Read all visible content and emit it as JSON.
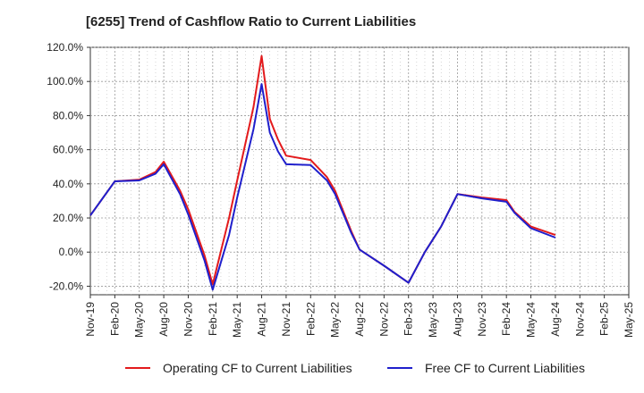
{
  "chart_data": {
    "type": "line",
    "title": "[6255]  Trend of Cashflow Ratio to Current Liabilities",
    "xlabel": "",
    "ylabel": "",
    "ylim": [
      -25,
      120
    ],
    "y_ticks": [
      -20,
      0,
      20,
      40,
      60,
      80,
      100,
      120
    ],
    "y_tick_labels": [
      "-20.0%",
      "0.0%",
      "20.0%",
      "40.0%",
      "60.0%",
      "80.0%",
      "100.0%",
      "120.0%"
    ],
    "x_tick_labels": [
      "Nov-19",
      "Feb-20",
      "May-20",
      "Aug-20",
      "Nov-20",
      "Feb-21",
      "May-21",
      "Aug-21",
      "Nov-21",
      "Feb-22",
      "May-22",
      "Aug-22",
      "Nov-22",
      "Feb-23",
      "May-23",
      "Aug-23",
      "Nov-23",
      "Feb-24",
      "May-24",
      "Aug-24",
      "Nov-24",
      "Feb-25",
      "May-25"
    ],
    "x_range": [
      "2019-11",
      "2025-05"
    ],
    "grid": true,
    "legend_position": "bottom",
    "series": [
      {
        "name": "Operating CF to Current Liabilities",
        "color": "#e31a1c",
        "points": [
          [
            "2019-11",
            21.5
          ],
          [
            "2020-02",
            41.5
          ],
          [
            "2020-05",
            42.5
          ],
          [
            "2020-07",
            47
          ],
          [
            "2020-08",
            53
          ],
          [
            "2020-10",
            36
          ],
          [
            "2020-11",
            25
          ],
          [
            "2021-01",
            -2
          ],
          [
            "2021-02",
            -19
          ],
          [
            "2021-04",
            20
          ],
          [
            "2021-05",
            42
          ],
          [
            "2021-07",
            85
          ],
          [
            "2021-08",
            115
          ],
          [
            "2021-09",
            78
          ],
          [
            "2021-10",
            66
          ],
          [
            "2021-11",
            56.5
          ],
          [
            "2022-02",
            54
          ],
          [
            "2022-04",
            44
          ],
          [
            "2022-05",
            36
          ],
          [
            "2022-07",
            12
          ],
          [
            "2022-08",
            1.5
          ],
          [
            "2022-11",
            -8
          ],
          [
            "2023-02",
            -18
          ],
          [
            "2023-04",
            0
          ],
          [
            "2023-06",
            15
          ],
          [
            "2023-08",
            34
          ],
          [
            "2023-11",
            32
          ],
          [
            "2024-02",
            30.5
          ],
          [
            "2024-03",
            23.5
          ],
          [
            "2024-05",
            15
          ],
          [
            "2024-08",
            10
          ]
        ]
      },
      {
        "name": "Free CF to Current Liabilities",
        "color": "#1f1fcc",
        "points": [
          [
            "2019-11",
            21.5
          ],
          [
            "2020-02",
            41.5
          ],
          [
            "2020-05",
            42
          ],
          [
            "2020-07",
            46
          ],
          [
            "2020-08",
            51.5
          ],
          [
            "2020-10",
            34
          ],
          [
            "2020-11",
            22
          ],
          [
            "2021-01",
            -5
          ],
          [
            "2021-02",
            -22
          ],
          [
            "2021-04",
            10
          ],
          [
            "2021-05",
            32
          ],
          [
            "2021-07",
            72
          ],
          [
            "2021-08",
            98.5
          ],
          [
            "2021-09",
            70
          ],
          [
            "2021-10",
            59
          ],
          [
            "2021-11",
            51.5
          ],
          [
            "2022-02",
            51
          ],
          [
            "2022-04",
            42
          ],
          [
            "2022-05",
            34
          ],
          [
            "2022-07",
            11
          ],
          [
            "2022-08",
            1.5
          ],
          [
            "2022-11",
            -8
          ],
          [
            "2023-02",
            -18
          ],
          [
            "2023-04",
            0
          ],
          [
            "2023-06",
            15
          ],
          [
            "2023-08",
            34
          ],
          [
            "2023-11",
            31.5
          ],
          [
            "2024-02",
            29.5
          ],
          [
            "2024-03",
            23
          ],
          [
            "2024-05",
            14
          ],
          [
            "2024-08",
            8.5
          ]
        ]
      }
    ]
  }
}
